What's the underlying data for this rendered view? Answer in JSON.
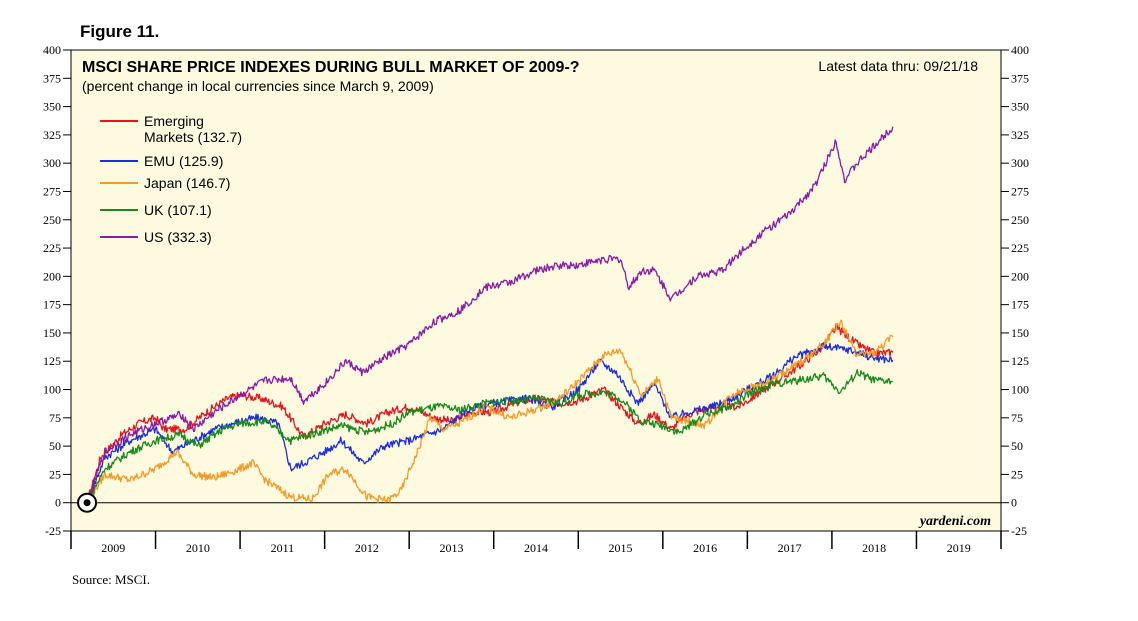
{
  "figure_label": "Figure 11.",
  "source": "Source: MSCI.",
  "colors": {
    "background": "#fdfae0",
    "Emerging Markets": "#e8141c",
    "EMU": "#1a2ee0",
    "Japan": "#f59a25",
    "UK": "#1a8a1a",
    "US": "#8a1aa8"
  },
  "chart_data": {
    "type": "line",
    "title": "MSCI SHARE PRICE INDEXES DURING BULL MARKET OF 2009-?",
    "subtitle": "(percent change in local currencies since March 9, 2009)",
    "note": "Latest data thru: 09/21/18",
    "brand": "yardeni.com",
    "ylim": [
      -25,
      400
    ],
    "yticks": [
      -25,
      0,
      25,
      50,
      75,
      100,
      125,
      150,
      175,
      200,
      225,
      250,
      275,
      300,
      325,
      350,
      375,
      400
    ],
    "xlim": [
      2009,
      2020
    ],
    "xtick_labels": [
      "2009",
      "2010",
      "2011",
      "2012",
      "2013",
      "2014",
      "2015",
      "2016",
      "2017",
      "2018",
      "2019"
    ],
    "legend_position": "top-left",
    "legend": [
      {
        "name": "Emerging",
        "name2": "Markets (132.7)"
      },
      {
        "name": "EMU (125.9)"
      },
      {
        "name": "Japan (146.7)"
      },
      {
        "name": "UK (107.1)"
      },
      {
        "name": "US (332.3)"
      }
    ],
    "series": [
      {
        "name": "Emerging Markets",
        "x": [
          2009.19,
          2009.35,
          2009.6,
          2009.8,
          2010.0,
          2010.1,
          2010.35,
          2010.6,
          2010.85,
          2011.0,
          2011.25,
          2011.5,
          2011.75,
          2012.0,
          2012.25,
          2012.5,
          2012.75,
          2013.0,
          2013.3,
          2013.5,
          2013.75,
          2014.0,
          2014.25,
          2014.5,
          2014.75,
          2015.0,
          2015.3,
          2015.5,
          2015.7,
          2015.9,
          2016.1,
          2016.3,
          2016.6,
          2016.9,
          2017.0,
          2017.3,
          2017.6,
          2017.9,
          2018.05,
          2018.3,
          2018.5,
          2018.72
        ],
        "values": [
          0,
          40,
          60,
          70,
          75,
          65,
          65,
          80,
          92,
          95,
          92,
          85,
          58,
          70,
          78,
          70,
          80,
          85,
          75,
          72,
          80,
          80,
          88,
          92,
          88,
          90,
          100,
          85,
          70,
          78,
          65,
          78,
          85,
          85,
          90,
          105,
          120,
          138,
          155,
          140,
          132,
          132.7
        ]
      },
      {
        "name": "EMU",
        "x": [
          2009.19,
          2009.4,
          2009.7,
          2010.0,
          2010.2,
          2010.45,
          2010.7,
          2011.0,
          2011.2,
          2011.45,
          2011.6,
          2011.75,
          2012.0,
          2012.2,
          2012.45,
          2012.7,
          2013.0,
          2013.4,
          2013.7,
          2014.0,
          2014.4,
          2014.7,
          2015.0,
          2015.25,
          2015.45,
          2015.7,
          2015.9,
          2016.1,
          2016.3,
          2016.6,
          2016.9,
          2017.0,
          2017.3,
          2017.55,
          2017.9,
          2018.2,
          2018.5,
          2018.72
        ],
        "values": [
          0,
          40,
          55,
          65,
          45,
          55,
          65,
          72,
          75,
          70,
          30,
          35,
          45,
          55,
          35,
          50,
          55,
          65,
          82,
          88,
          92,
          85,
          100,
          125,
          115,
          88,
          105,
          75,
          80,
          85,
          95,
          100,
          112,
          128,
          138,
          135,
          128,
          125.9
        ]
      },
      {
        "name": "Japan",
        "x": [
          2009.19,
          2009.4,
          2009.7,
          2010.0,
          2010.25,
          2010.45,
          2010.7,
          2011.0,
          2011.15,
          2011.3,
          2011.6,
          2011.85,
          2012.05,
          2012.25,
          2012.5,
          2012.75,
          2012.9,
          2013.1,
          2013.25,
          2013.4,
          2013.6,
          2013.9,
          2014.2,
          2014.4,
          2014.7,
          2014.9,
          2015.1,
          2015.3,
          2015.5,
          2015.75,
          2015.95,
          2016.1,
          2016.3,
          2016.5,
          2016.8,
          2016.95,
          2017.2,
          2017.5,
          2017.7,
          2017.9,
          2018.1,
          2018.3,
          2018.5,
          2018.72
        ],
        "values": [
          0,
          25,
          20,
          30,
          45,
          25,
          22,
          30,
          35,
          20,
          5,
          3,
          25,
          30,
          5,
          2,
          10,
          45,
          75,
          65,
          70,
          85,
          75,
          80,
          88,
          100,
          115,
          130,
          135,
          95,
          110,
          75,
          72,
          68,
          95,
          100,
          105,
          118,
          128,
          140,
          160,
          130,
          132,
          146.7
        ]
      },
      {
        "name": "UK",
        "x": [
          2009.19,
          2009.4,
          2009.7,
          2010.0,
          2010.3,
          2010.5,
          2010.8,
          2011.0,
          2011.3,
          2011.6,
          2011.9,
          2012.2,
          2012.5,
          2012.8,
          2013.0,
          2013.35,
          2013.6,
          2013.9,
          2014.2,
          2014.5,
          2014.8,
          2015.0,
          2015.3,
          2015.5,
          2015.75,
          2016.0,
          2016.2,
          2016.5,
          2016.8,
          2017.0,
          2017.3,
          2017.6,
          2017.9,
          2018.1,
          2018.3,
          2018.5,
          2018.72
        ],
        "values": [
          0,
          30,
          45,
          55,
          60,
          50,
          65,
          70,
          72,
          55,
          62,
          68,
          62,
          70,
          80,
          85,
          82,
          88,
          90,
          92,
          88,
          95,
          98,
          92,
          72,
          68,
          62,
          78,
          85,
          95,
          105,
          108,
          112,
          98,
          115,
          108,
          107.1
        ]
      },
      {
        "name": "US",
        "x": [
          2009.19,
          2009.4,
          2009.7,
          2010.0,
          2010.3,
          2010.45,
          2010.7,
          2011.0,
          2011.3,
          2011.6,
          2011.75,
          2012.0,
          2012.25,
          2012.45,
          2012.75,
          2013.0,
          2013.3,
          2013.6,
          2013.9,
          2014.2,
          2014.5,
          2014.8,
          2015.0,
          2015.3,
          2015.5,
          2015.6,
          2015.75,
          2015.9,
          2016.1,
          2016.4,
          2016.7,
          2016.9,
          2017.2,
          2017.5,
          2017.8,
          2018.05,
          2018.15,
          2018.3,
          2018.5,
          2018.72
        ],
        "values": [
          0,
          45,
          60,
          70,
          78,
          65,
          80,
          95,
          108,
          110,
          90,
          105,
          125,
          115,
          130,
          140,
          160,
          170,
          190,
          195,
          205,
          210,
          210,
          215,
          215,
          190,
          205,
          205,
          180,
          200,
          205,
          220,
          240,
          255,
          280,
          320,
          285,
          300,
          315,
          332.3
        ]
      }
    ]
  }
}
